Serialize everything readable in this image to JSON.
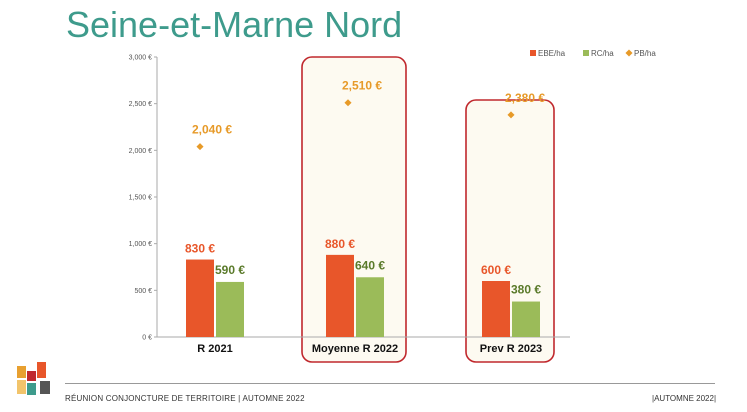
{
  "page_title": "Seine-et-Marne Nord",
  "footer": {
    "left": "RÉUNION CONJONCTURE DE TERRITOIRE | AUTOMNE 2022",
    "right": "|AUTOMNE 2022|"
  },
  "colors": {
    "ebe": "#e8562a",
    "rc": "#9bbb59",
    "pb": "#e79a28",
    "highlight": "#c0282d",
    "title": "#3e9b8c"
  },
  "chart_data": {
    "type": "bar",
    "categories": [
      "R 2021",
      "Moyenne R 2022",
      "Prev R 2023"
    ],
    "series": [
      {
        "name": "EBE/ha",
        "type": "bar",
        "values": [
          830,
          880,
          600
        ],
        "labels": [
          "830 €",
          "880 €",
          "600 €"
        ]
      },
      {
        "name": "RC/ha",
        "type": "bar",
        "values": [
          590,
          640,
          380
        ],
        "labels": [
          "590 €",
          "640 €",
          "380 €"
        ]
      },
      {
        "name": "PB/ha",
        "type": "scatter",
        "values": [
          2040,
          2510,
          2380
        ],
        "labels": [
          "2,040 €",
          "2,510 €",
          "2,380 €"
        ]
      }
    ],
    "y_ticks": [
      0,
      500,
      1000,
      1500,
      2000,
      2500,
      3000
    ],
    "y_tick_labels": [
      "0 €",
      "500 €",
      "1,000 €",
      "1,500 €",
      "2,000 €",
      "2,500 €",
      "3,000 €"
    ],
    "ylim": [
      0,
      3000
    ],
    "legend": "top-right",
    "grid": false,
    "highlighted_categories": [
      "Moyenne R 2022",
      "Prev R 2023"
    ]
  }
}
